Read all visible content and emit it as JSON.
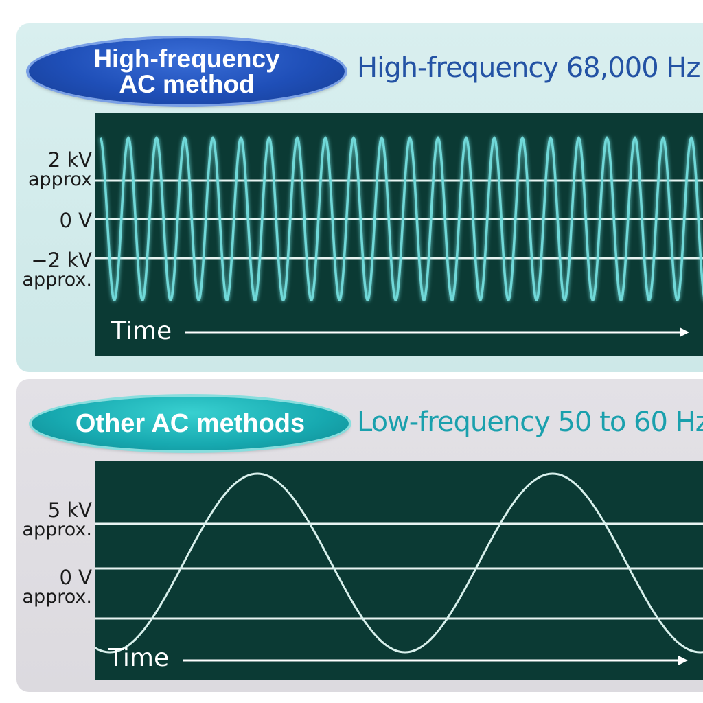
{
  "top_section": {
    "badge_line1": "High-frequency",
    "badge_line2": "AC method",
    "subtitle": "High-frequency 68,000 Hz",
    "labels": {
      "upper_value": "2 kV",
      "upper_suffix": "approx",
      "zero": "0 V",
      "lower_value": "−2 kV",
      "lower_suffix": "approx."
    },
    "time_label": "Time",
    "wave_color": "#6fd8d8"
  },
  "bottom_section": {
    "badge": "Other AC methods",
    "subtitle": "Low-frequency 50 to 60 Hz",
    "labels": {
      "upper_value": "5 kV",
      "upper_suffix": "approx.",
      "zero": "0 V",
      "zero_suffix": "approx."
    },
    "time_label": "Time",
    "wave_color": "#d8f0ec"
  },
  "colors": {
    "plot_background": "#0b3a34",
    "top_badge": "#1f4fb8",
    "bottom_badge": "#17a9b0"
  }
}
